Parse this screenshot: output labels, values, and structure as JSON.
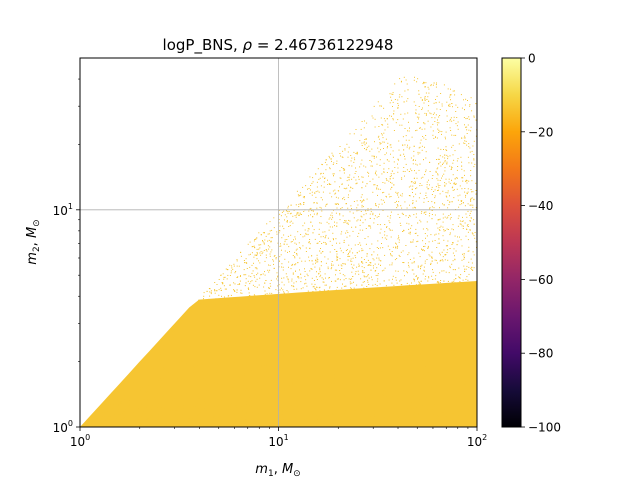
{
  "chart_data": {
    "type": "scatter",
    "title_prefix": "logP_BNS, ",
    "title_rho": "ρ",
    "title_value": " = 2.46736122948",
    "xlabel": "m",
    "xlabel_sub": "1",
    "ylabel": "m",
    "ylabel_sub": "2",
    "unit": "M",
    "unit_sub": "⊙",
    "xscale": "log",
    "yscale": "log",
    "xlim": [
      1,
      100
    ],
    "ylim": [
      1,
      50
    ],
    "x_ticks": [
      {
        "value": 1,
        "exp": "0"
      },
      {
        "value": 10,
        "exp": "1"
      },
      {
        "value": 100,
        "exp": "2"
      }
    ],
    "y_ticks": [
      {
        "value": 1,
        "exp": "0"
      },
      {
        "value": 10,
        "exp": "1"
      }
    ],
    "grid": true,
    "point_color": "#f6c532",
    "point_region": {
      "m1_range": [
        1,
        100
      ],
      "m2_min": 1,
      "m2_max": 45,
      "m2_le_m1": true,
      "dense_core_m2_max": 3.5
    },
    "colorbar": {
      "colormap": "inferno",
      "range": [
        -100,
        0
      ],
      "ticks": [
        0,
        -20,
        -40,
        -60,
        -80,
        -100
      ],
      "tick_labels": [
        "0",
        "−20",
        "−40",
        "−60",
        "−80",
        "−100"
      ]
    }
  }
}
